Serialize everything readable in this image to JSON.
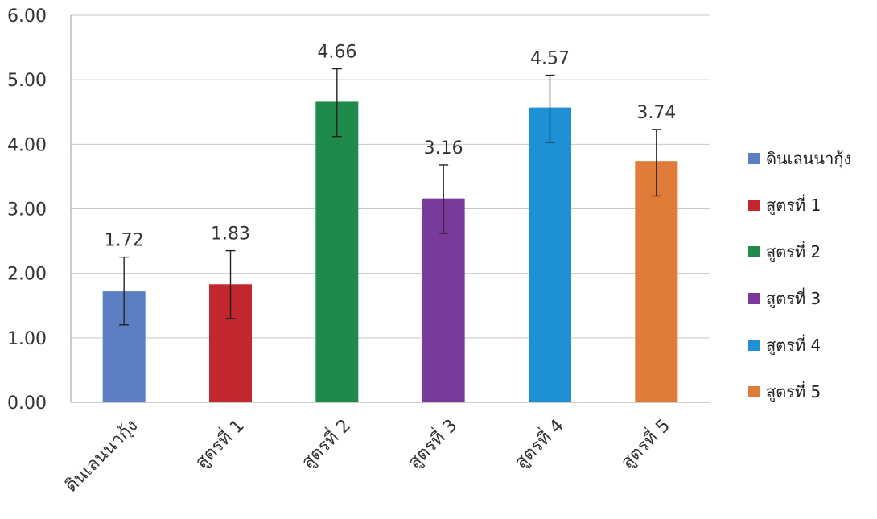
{
  "chart_data": {
    "type": "bar",
    "categories": [
      "ดินเลนนากุ้ง",
      "สูตรที่ 1",
      "สูตรที่ 2",
      "สูตรที่ 3",
      "สูตรที่ 4",
      "สูตรที่ 5"
    ],
    "values": [
      1.72,
      1.83,
      4.66,
      3.16,
      4.57,
      3.74
    ],
    "value_labels": [
      "1.72",
      "1.83",
      "4.66",
      "3.16",
      "4.57",
      "3.74"
    ],
    "error_low": [
      1.2,
      1.3,
      4.12,
      2.62,
      4.03,
      3.2
    ],
    "error_high": [
      2.25,
      2.35,
      5.17,
      3.68,
      5.07,
      4.23
    ],
    "colors": [
      "#5b7fc2",
      "#c1272d",
      "#1f8a4c",
      "#7a3a9c",
      "#1e90d6",
      "#e07b39"
    ],
    "yticks": [
      "0.00",
      "1.00",
      "2.00",
      "3.00",
      "4.00",
      "5.00",
      "6.00"
    ],
    "ylim": [
      0,
      6
    ],
    "grid": true,
    "legend_position": "right",
    "title": "",
    "xlabel": "",
    "ylabel": ""
  },
  "legend": {
    "items": [
      {
        "label": "ดินเลนนากุ้ง",
        "color": "#5b7fc2"
      },
      {
        "label": "สูตรที่ 1",
        "color": "#c1272d"
      },
      {
        "label": "สูตรที่ 2",
        "color": "#1f8a4c"
      },
      {
        "label": "สูตรที่ 3",
        "color": "#7a3a9c"
      },
      {
        "label": "สูตรที่ 4",
        "color": "#1e90d6"
      },
      {
        "label": "สูตรที่ 5",
        "color": "#e07b39"
      }
    ]
  }
}
